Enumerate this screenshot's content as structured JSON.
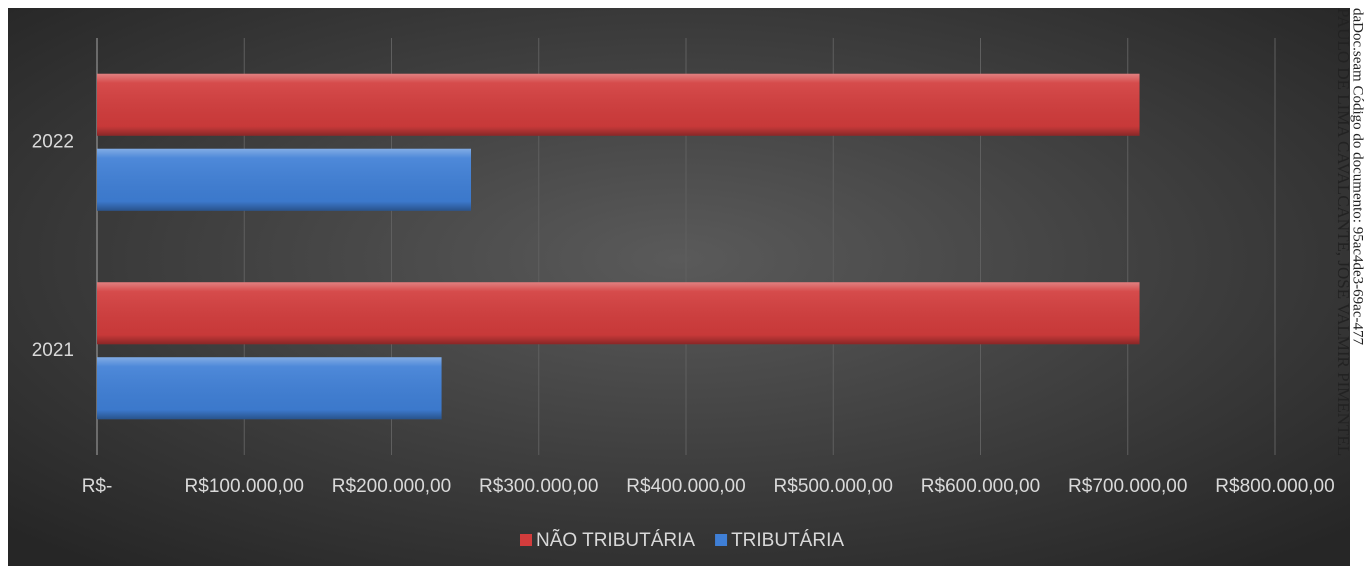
{
  "chart_data": {
    "type": "bar",
    "orientation": "horizontal",
    "categories": [
      "2021",
      "2022"
    ],
    "series": [
      {
        "name": "NÃO TRIBUTÁRIA",
        "color": "#d23c3c",
        "values": [
          708000,
          708000
        ]
      },
      {
        "name": "TRIBUTÁRIA",
        "color": "#3f7fd6",
        "values": [
          234000,
          254000
        ]
      }
    ],
    "xlim": [
      0,
      800000
    ],
    "xticks": [
      {
        "value": 0,
        "label": "R$-"
      },
      {
        "value": 100000,
        "label": "R$100.000,00"
      },
      {
        "value": 200000,
        "label": "R$200.000,00"
      },
      {
        "value": 300000,
        "label": "R$300.000,00"
      },
      {
        "value": 400000,
        "label": "R$400.000,00"
      },
      {
        "value": 500000,
        "label": "R$500.000,00"
      },
      {
        "value": 600000,
        "label": "R$600.000,00"
      },
      {
        "value": 700000,
        "label": "R$700.000,00"
      },
      {
        "value": 800000,
        "label": "R$800.000,00"
      }
    ],
    "grid": true,
    "legend": "bottom",
    "watermark": [
      "PAULO DE LIMA CAVALCANTE, JOSE VALMIR PIMENTEL",
      "daDoc.seam Código do documento: 95ac4de3-69ac-477"
    ]
  }
}
